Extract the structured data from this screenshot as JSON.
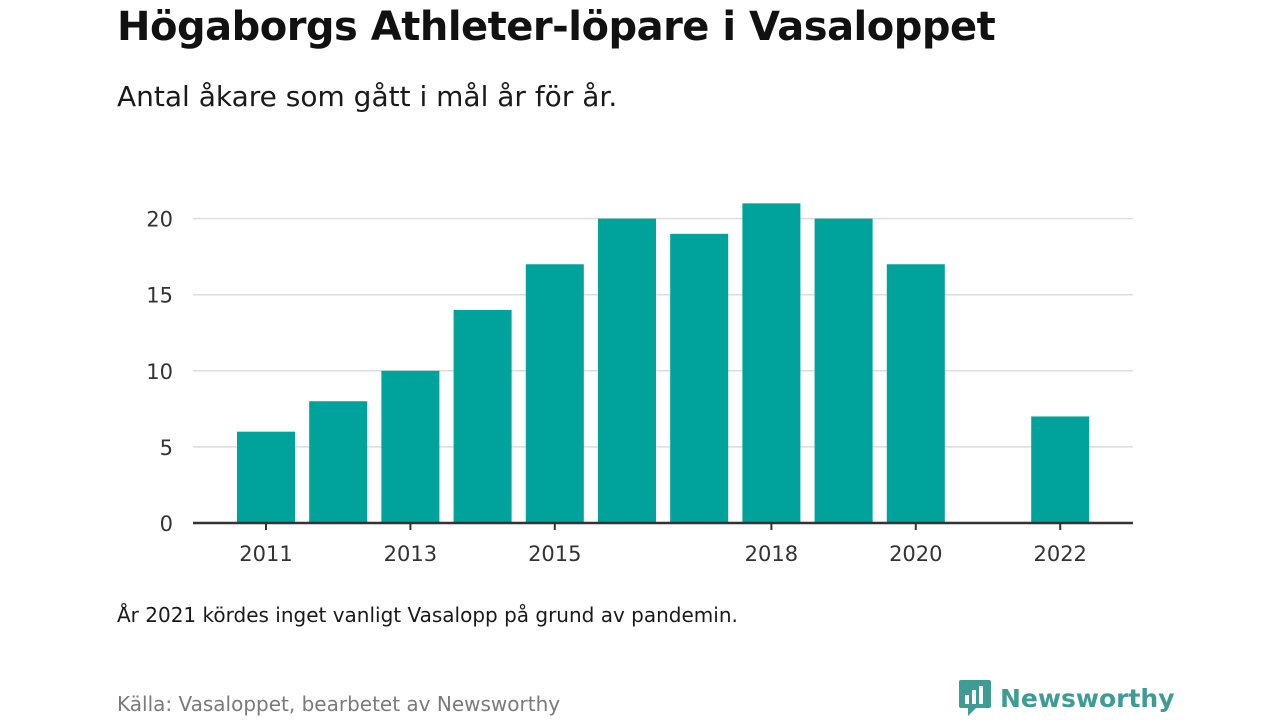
{
  "header": {
    "title": "Högaborgs Athleter-löpare i Vasaloppet",
    "subtitle": "Antal åkare som gått i mål år för år."
  },
  "footer": {
    "note": "År 2021 kördes inget vanligt Vasalopp på grund av pandemin.",
    "source": "Källa: Vasaloppet, bearbetet av Newsworthy",
    "brand": "Newsworthy",
    "brand_icon": "newsworthy-logo-icon"
  },
  "colors": {
    "bar": "#00a39b",
    "grid": "#dcdcdc",
    "axis": "#333333",
    "brand": "#3f9c95"
  },
  "chart_data": {
    "type": "bar",
    "title": "Högaborgs Athleter-löpare i Vasaloppet",
    "subtitle": "Antal åkare som gått i mål år för år.",
    "xlabel": "",
    "ylabel": "",
    "categories": [
      "2011",
      "2012",
      "2013",
      "2014",
      "2015",
      "2016",
      "2017",
      "2018",
      "2019",
      "2020",
      "2021",
      "2022"
    ],
    "values": [
      6,
      8,
      10,
      14,
      17,
      20,
      19,
      21,
      20,
      17,
      null,
      7
    ],
    "x_tick_labels": [
      "2011",
      "2013",
      "2015",
      "2018",
      "2020",
      "2022"
    ],
    "y_ticks": [
      0,
      5,
      10,
      15,
      20
    ],
    "ylim": [
      0,
      21
    ],
    "grid": true,
    "legend": "none"
  }
}
